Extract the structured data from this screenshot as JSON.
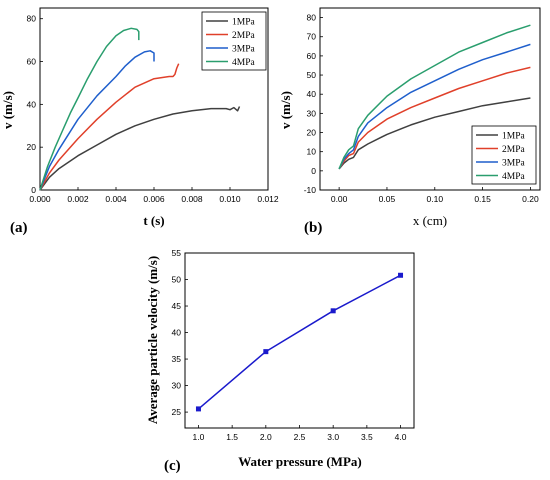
{
  "chart_data": [
    {
      "id": "a",
      "type": "line",
      "panel_label": "(a)",
      "xlabel": "t (s)",
      "ylabel": "v (m/s)",
      "xlim": [
        0,
        0.012
      ],
      "ylim": [
        0,
        85
      ],
      "xticks": [
        "0.000",
        "0.002",
        "0.004",
        "0.006",
        "0.008",
        "0.010",
        "0.012"
      ],
      "yticks": [
        "0",
        "20",
        "40",
        "60",
        "80"
      ],
      "xtick_values": [
        0,
        0.002,
        0.004,
        0.006,
        0.008,
        0.01,
        0.012
      ],
      "ytick_values": [
        0,
        20,
        40,
        60,
        80
      ],
      "legend_position": "top-right",
      "series": [
        {
          "name": "1MPa",
          "color": "#404040",
          "x": [
            0,
            0.0005,
            0.001,
            0.002,
            0.003,
            0.004,
            0.005,
            0.006,
            0.007,
            0.008,
            0.009,
            0.0098,
            0.01,
            0.0102,
            0.0104,
            0.0105
          ],
          "y": [
            0,
            6,
            10,
            16,
            21,
            26,
            30,
            33,
            35.5,
            37,
            38,
            38,
            37.5,
            38.5,
            37,
            39
          ]
        },
        {
          "name": "2MPa",
          "color": "#e0402a",
          "x": [
            0,
            0.0005,
            0.001,
            0.002,
            0.003,
            0.004,
            0.005,
            0.006,
            0.0068,
            0.007,
            0.0071,
            0.0072,
            0.0073
          ],
          "y": [
            0,
            8,
            14,
            24,
            33,
            41,
            48,
            52,
            53,
            53,
            54,
            57,
            59
          ]
        },
        {
          "name": "3MPa",
          "color": "#1f5fcc",
          "x": [
            0,
            0.0005,
            0.001,
            0.0015,
            0.002,
            0.003,
            0.004,
            0.0045,
            0.005,
            0.0055,
            0.0058,
            0.006,
            0.006
          ],
          "y": [
            0,
            11,
            19,
            26,
            33,
            44,
            53,
            58,
            62,
            64.5,
            65,
            64,
            60
          ]
        },
        {
          "name": "4MPa",
          "color": "#2a9e6e",
          "x": [
            0,
            0.0004,
            0.0008,
            0.0012,
            0.0016,
            0.002,
            0.0025,
            0.003,
            0.0035,
            0.004,
            0.0044,
            0.0048,
            0.0051,
            0.0052,
            0.0052
          ],
          "y": [
            0,
            11,
            20,
            28,
            36,
            43,
            52,
            60,
            67,
            72,
            74.5,
            75.5,
            75,
            74,
            70
          ]
        }
      ]
    },
    {
      "id": "b",
      "type": "line",
      "panel_label": "(b)",
      "xlabel": "x (cm)",
      "ylabel": "v (m/s)",
      "xlim": [
        -0.02,
        0.21
      ],
      "ylim": [
        -10,
        85
      ],
      "xticks": [
        "0.00",
        "0.05",
        "0.10",
        "0.15",
        "0.20"
      ],
      "yticks": [
        "-10",
        "0",
        "10",
        "20",
        "30",
        "40",
        "50",
        "60",
        "70",
        "80"
      ],
      "xtick_values": [
        0,
        0.05,
        0.1,
        0.15,
        0.2
      ],
      "ytick_values": [
        -10,
        0,
        10,
        20,
        30,
        40,
        50,
        60,
        70,
        80
      ],
      "legend_position": "bottom-right",
      "series": [
        {
          "name": "1MPa",
          "color": "#404040",
          "x": [
            0,
            0.005,
            0.01,
            0.015,
            0.02,
            0.03,
            0.05,
            0.075,
            0.1,
            0.125,
            0.15,
            0.175,
            0.2
          ],
          "y": [
            1,
            4,
            6,
            7,
            11,
            14,
            19,
            24,
            28,
            31,
            34,
            36,
            38
          ]
        },
        {
          "name": "2MPa",
          "color": "#e0402a",
          "x": [
            0,
            0.005,
            0.01,
            0.015,
            0.02,
            0.03,
            0.05,
            0.075,
            0.1,
            0.125,
            0.15,
            0.175,
            0.2
          ],
          "y": [
            1,
            5,
            8,
            9,
            15,
            20,
            27,
            33,
            38,
            43,
            47,
            51,
            54
          ]
        },
        {
          "name": "3MPa",
          "color": "#1f5fcc",
          "x": [
            0,
            0.005,
            0.01,
            0.015,
            0.02,
            0.03,
            0.05,
            0.075,
            0.1,
            0.125,
            0.15,
            0.175,
            0.2
          ],
          "y": [
            1,
            6,
            9,
            11,
            18,
            25,
            33,
            41,
            47,
            53,
            58,
            62,
            66
          ]
        },
        {
          "name": "4MPa",
          "color": "#2a9e6e",
          "x": [
            0,
            0.005,
            0.01,
            0.015,
            0.02,
            0.03,
            0.05,
            0.075,
            0.1,
            0.125,
            0.15,
            0.175,
            0.2
          ],
          "y": [
            1,
            7,
            11,
            13,
            22,
            29,
            39,
            48,
            55,
            62,
            67,
            72,
            76
          ]
        }
      ]
    },
    {
      "id": "c",
      "type": "line",
      "panel_label": "(c)",
      "xlabel": "Water pressure (MPa)",
      "ylabel": "Average particle velocity (m/s)",
      "xlim": [
        0.8,
        4.2
      ],
      "ylim": [
        22,
        55
      ],
      "xticks": [
        "1.0",
        "1.5",
        "2.0",
        "2.5",
        "3.0",
        "3.5",
        "4.0"
      ],
      "yticks": [
        "25",
        "30",
        "35",
        "40",
        "45",
        "50",
        "55"
      ],
      "xtick_values": [
        1.0,
        1.5,
        2.0,
        2.5,
        3.0,
        3.5,
        4.0
      ],
      "ytick_values": [
        25,
        30,
        35,
        40,
        45,
        50,
        55
      ],
      "series": [
        {
          "color": "#1a1acc",
          "x": [
            1,
            2,
            3,
            4
          ],
          "y": [
            25.6,
            36.4,
            44.1,
            50.8
          ]
        }
      ]
    }
  ]
}
